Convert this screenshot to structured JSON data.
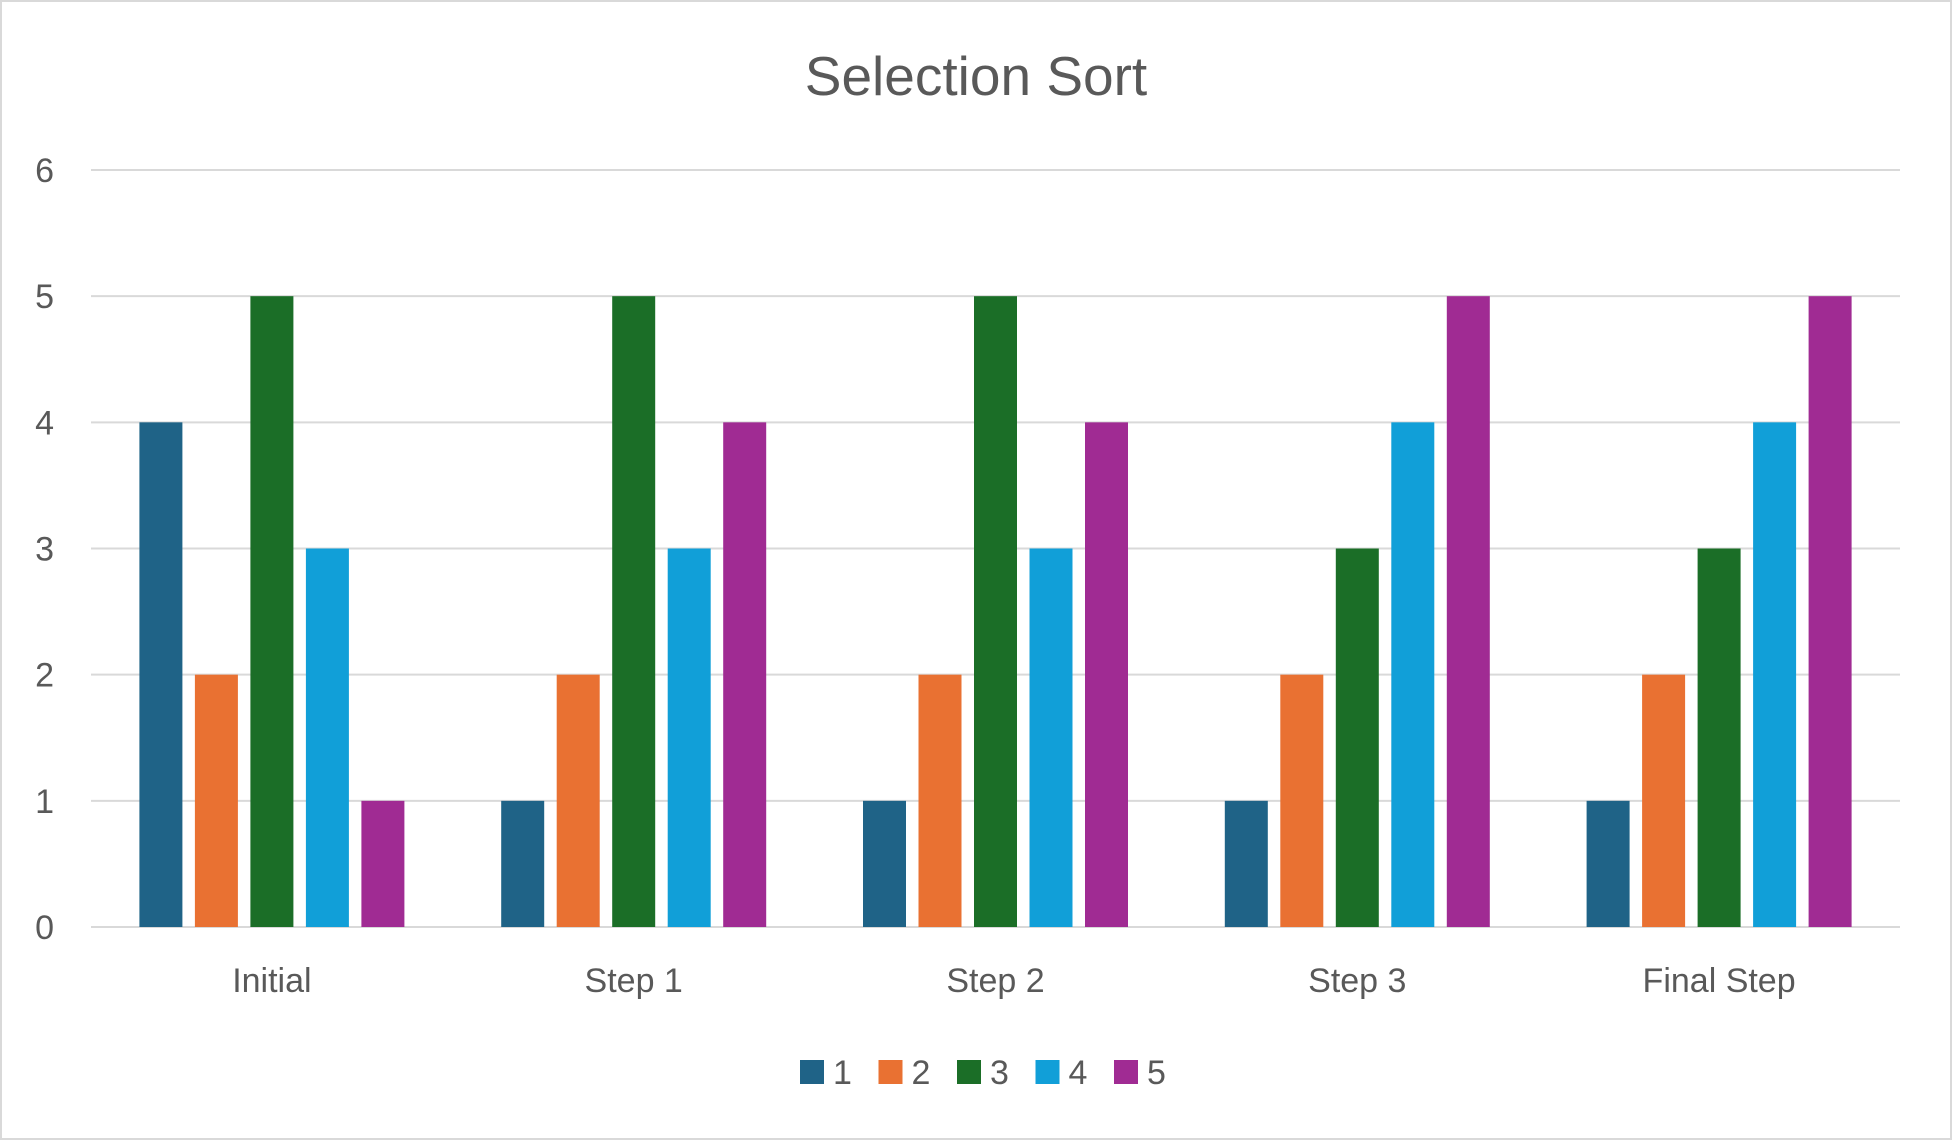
{
  "chart_data": {
    "type": "bar",
    "title": "Selection Sort",
    "xlabel": "",
    "ylabel": "",
    "categories": [
      "Initial",
      "Step 1",
      "Step 2",
      "Step 3",
      "Final Step"
    ],
    "series": [
      {
        "name": "1",
        "color": "#1f6387",
        "values": [
          4,
          1,
          1,
          1,
          1
        ]
      },
      {
        "name": "2",
        "color": "#e97132",
        "values": [
          2,
          2,
          2,
          2,
          2
        ]
      },
      {
        "name": "3",
        "color": "#1b6e27",
        "values": [
          5,
          5,
          5,
          3,
          3
        ]
      },
      {
        "name": "4",
        "color": "#119fd8",
        "values": [
          3,
          3,
          3,
          4,
          4
        ]
      },
      {
        "name": "5",
        "color": "#a02b93",
        "values": [
          1,
          4,
          4,
          5,
          5
        ]
      }
    ],
    "ylim": [
      0,
      6
    ],
    "yticks": [
      "0",
      "1",
      "2",
      "3",
      "4",
      "5",
      "6"
    ],
    "grid": true,
    "legend_position": "bottom"
  }
}
